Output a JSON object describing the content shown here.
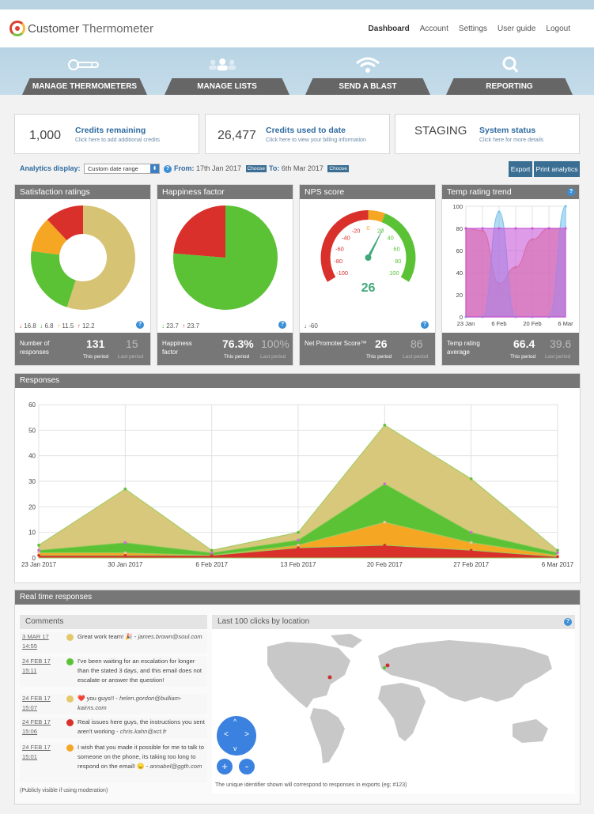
{
  "app": {
    "logo_word1": "Customer",
    "logo_word2": "Thermometer"
  },
  "topnav": [
    "Dashboard",
    "Account",
    "Settings",
    "User guide",
    "Logout"
  ],
  "main_tabs": [
    {
      "label": "MANAGE THERMOMETERS",
      "icon": "thermometer-icon"
    },
    {
      "label": "MANAGE LISTS",
      "icon": "people-icon"
    },
    {
      "label": "SEND A BLAST",
      "icon": "wifi-icon"
    },
    {
      "label": "REPORTING",
      "icon": "magnifier-icon"
    }
  ],
  "stats": [
    {
      "value": "1,000",
      "title": "Credits remaining",
      "sub": "Click here to add additional credits"
    },
    {
      "value": "26,477",
      "title": "Credits used to date",
      "sub": "Click here to view your billing information"
    },
    {
      "value": "STAGING",
      "title": "System status",
      "sub": "Click here for more details"
    }
  ],
  "analytics": {
    "label": "Analytics display:",
    "select_value": "Custom date range",
    "from_label": "From:",
    "from_value": "17th Jan 2017",
    "to_label": "To:",
    "to_value": "6th Mar 2017",
    "choose": "Choose",
    "export": "Export",
    "print": "Print analytics"
  },
  "cards": {
    "satisfaction": {
      "title": "Satisfaction ratings",
      "deltas": [
        "16.8",
        "6.8",
        "11.5",
        "12.2"
      ],
      "label": "Number of responses",
      "value": "131",
      "last": "15",
      "this_period": "This period",
      "last_period": "Last period"
    },
    "happiness": {
      "title": "Happiness factor",
      "deltas": [
        "23.7",
        "23.7"
      ],
      "label": "Happiness factor",
      "value": "76.3%",
      "last": "100%",
      "this_period": "This period",
      "last_period": "Last period"
    },
    "nps": {
      "title": "NPS score",
      "gauge_value": "26",
      "gauge_ticks": [
        "-100",
        "-80",
        "-60",
        "-40",
        "-20",
        "0",
        "20",
        "40",
        "60",
        "80",
        "100"
      ],
      "delta": "-60",
      "label": "Net Promoter Score™",
      "value": "26",
      "last": "86",
      "this_period": "This period",
      "last_period": "Last period"
    },
    "temp": {
      "title": "Temp rating trend",
      "yticks": [
        "100",
        "80",
        "60",
        "40",
        "20",
        "0"
      ],
      "xticks": [
        "23 Jan",
        "6 Feb",
        "20 Feb",
        "6 Mar"
      ],
      "label": "Temp rating average",
      "value": "66.4",
      "last": "39.6",
      "this_period": "This period",
      "last_period": "Last period"
    }
  },
  "responses": {
    "title": "Responses"
  },
  "realtime": {
    "title": "Real time responses",
    "comments_title": "Comments",
    "comments": [
      {
        "date": "3 MAR 17",
        "time": "14:55",
        "color": "#e3c96a",
        "text": "Great work team! 🎉 - ",
        "author": "james.brown@soul.com"
      },
      {
        "date": "24 FEB 17",
        "time": "15:11",
        "color": "#5bc236",
        "text": "I've been waiting for an escalation for longer than the stated 3 days, and this email does not escalate or answer the question!",
        "author": ""
      },
      {
        "date": "24 FEB 17",
        "time": "15:07",
        "color": "#e3c96a",
        "text": "❤️ you guys!! - ",
        "author": "helen.gordon@bulliam-kairns.com"
      },
      {
        "date": "24 FEB 17",
        "time": "15:06",
        "color": "#d9302c",
        "text": "Real issues here guys, the instructions you sent aren't working - ",
        "author": "chris.kahn@xct.fr"
      },
      {
        "date": "24 FEB 17",
        "time": "15:01",
        "color": "#f5a623",
        "text": "I wish that you made it possible for me to talk to someone on the phone, its taking too long to respond on the email! 😞 - ",
        "author": "annabel@ggth.com"
      }
    ],
    "moderation_note": "(Publicly visible if using moderation)",
    "map_title": "Last 100 clicks by location",
    "map_note": "The unique identifier shown will correspond to responses in exports (eg; #123)"
  },
  "colors": {
    "accent": "#3a6e93",
    "red": "#d9302c",
    "green": "#5bc236",
    "orange": "#f5a623",
    "gold": "#d8c46e",
    "grey_header": "#777777"
  },
  "chart_data": [
    {
      "type": "pie",
      "title": "Satisfaction ratings",
      "donut": true,
      "slices": [
        {
          "label": "Gold",
          "value": 55,
          "color": "#d6c373"
        },
        {
          "label": "Green",
          "value": 22,
          "color": "#5bc236"
        },
        {
          "label": "Orange",
          "value": 11,
          "color": "#f5a623"
        },
        {
          "label": "Red",
          "value": 12,
          "color": "#d9302c"
        }
      ]
    },
    {
      "type": "pie",
      "title": "Happiness factor",
      "slices": [
        {
          "label": "Happy",
          "value": 76.3,
          "color": "#5bc236"
        },
        {
          "label": "Unhappy",
          "value": 23.7,
          "color": "#d9302c"
        }
      ]
    },
    {
      "type": "area",
      "title": "Temp rating trend",
      "x": [
        "23 Jan",
        "30 Jan",
        "6 Feb",
        "13 Feb",
        "20 Feb",
        "27 Feb",
        "6 Mar"
      ],
      "ylim": [
        0,
        100
      ],
      "series": [
        {
          "color": "#f08a70",
          "values": [
            80,
            78,
            30,
            45,
            70,
            80,
            80
          ]
        },
        {
          "color": "#7fc4ec",
          "values": [
            0,
            0,
            95,
            0,
            0,
            0,
            100
          ]
        },
        {
          "color": "#c85ad8",
          "values": [
            80,
            80,
            80,
            80,
            80,
            80,
            80
          ]
        }
      ]
    },
    {
      "type": "area",
      "title": "Responses",
      "x": [
        "23 Jan 2017",
        "30 Jan 2017",
        "6 Feb 2017",
        "13 Feb 2017",
        "20 Feb 2017",
        "27 Feb 2017",
        "6 Mar 2017"
      ],
      "ylim": [
        0,
        60
      ],
      "yticks": [
        0,
        10,
        20,
        30,
        40,
        50,
        60
      ],
      "series": [
        {
          "color": "#d8c87c",
          "values": [
            5,
            27,
            3,
            10,
            52,
            31,
            3
          ]
        },
        {
          "color": "#5bc236",
          "values": [
            3,
            6,
            2,
            7,
            29,
            10,
            2
          ]
        },
        {
          "color": "#f5a623",
          "values": [
            2,
            2,
            1,
            5,
            14,
            6,
            1
          ]
        },
        {
          "color": "#d9302c",
          "values": [
            1,
            1,
            1,
            4,
            5,
            3,
            0.5
          ]
        }
      ]
    }
  ]
}
